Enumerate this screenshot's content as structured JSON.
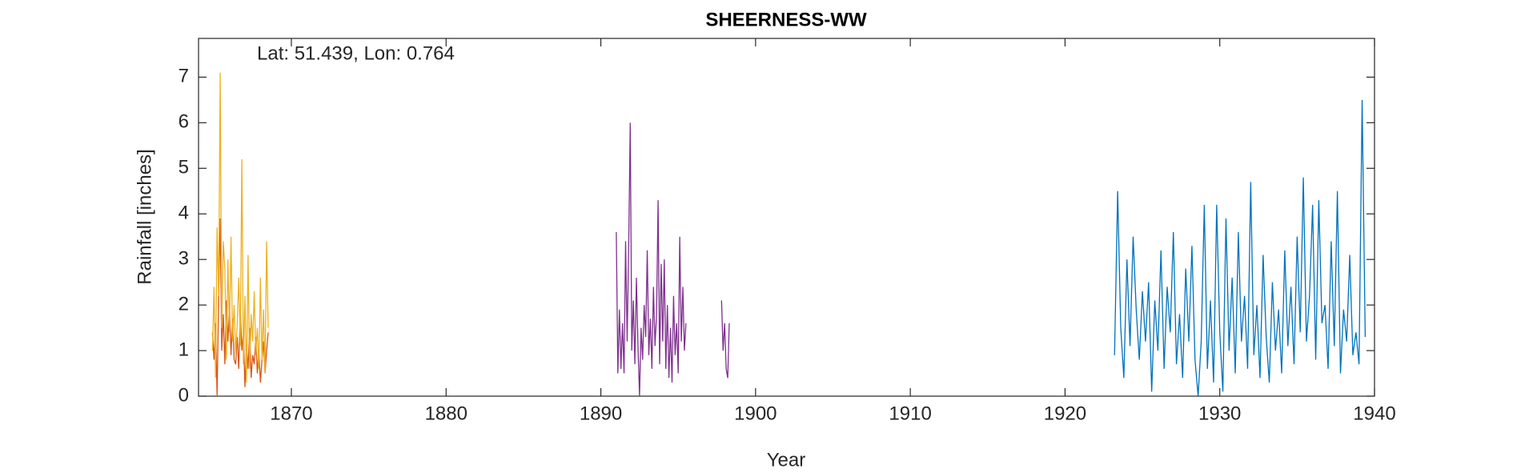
{
  "chart_data": {
    "type": "line",
    "title": "SHEERNESS-WW",
    "annotation": "Lat: 51.439, Lon: 0.764",
    "x_label": "Year",
    "y_label": "Rainfall [inches]",
    "xlim": [
      1864,
      1940
    ],
    "xticks": [
      1870,
      1880,
      1890,
      1900,
      1910,
      1920,
      1930,
      1940
    ],
    "ylim": [
      0,
      7.85
    ],
    "yticks": [
      0,
      1,
      2,
      3,
      4,
      5,
      6,
      7
    ],
    "grid": false,
    "series": [
      {
        "color": "#0072BD",
        "x": [
          1923.2,
          1923.4,
          1923.6,
          1923.8,
          1924.0,
          1924.2,
          1924.4,
          1924.6,
          1924.8,
          1925.0,
          1925.2,
          1925.4,
          1925.6,
          1925.8,
          1926.0,
          1926.2,
          1926.4,
          1926.6,
          1926.8,
          1927.0,
          1927.2,
          1927.4,
          1927.6,
          1927.8,
          1928.0,
          1928.2,
          1928.4,
          1928.6,
          1928.8,
          1929.0,
          1929.2,
          1929.4,
          1929.6,
          1929.8,
          1930.0,
          1930.2,
          1930.4,
          1930.6,
          1930.8,
          1931.0,
          1931.2,
          1931.4,
          1931.6,
          1931.8,
          1932.0,
          1932.2,
          1932.4,
          1932.6,
          1932.8,
          1933.0,
          1933.2,
          1933.4,
          1933.6,
          1933.8,
          1934.0,
          1934.2,
          1934.4,
          1934.6,
          1934.8,
          1935.0,
          1935.2,
          1935.4,
          1935.6,
          1935.8,
          1936.0,
          1936.2,
          1936.4,
          1936.6,
          1936.8,
          1937.0,
          1937.2,
          1937.4,
          1937.6,
          1937.8,
          1938.0,
          1938.2,
          1938.4,
          1938.6,
          1938.8,
          1939.0,
          1939.2,
          1939.4
        ],
        "values": [
          0.9,
          4.5,
          1.5,
          0.4,
          3.0,
          1.1,
          3.5,
          1.9,
          0.8,
          2.3,
          1.2,
          2.5,
          0.1,
          2.1,
          1.0,
          3.2,
          0.6,
          2.4,
          1.4,
          3.6,
          0.7,
          1.8,
          0.4,
          2.8,
          1.2,
          3.3,
          0.8,
          0.0,
          1.2,
          4.2,
          0.6,
          2.1,
          0.3,
          4.2,
          1.4,
          0.1,
          3.9,
          1.0,
          2.6,
          0.5,
          3.6,
          1.2,
          2.2,
          0.6,
          4.7,
          0.9,
          2.0,
          0.4,
          3.1,
          1.3,
          0.3,
          2.5,
          1.0,
          1.9,
          0.5,
          3.2,
          1.1,
          2.4,
          0.7,
          3.5,
          1.4,
          4.8,
          1.2,
          2.2,
          4.2,
          0.8,
          4.3,
          1.6,
          2.0,
          0.6,
          3.4,
          1.1,
          4.5,
          0.5,
          1.9,
          1.2,
          3.1,
          0.9,
          1.4,
          0.7,
          6.5,
          1.3
        ]
      },
      {
        "color": "#D95319",
        "x": [
          1864.9,
          1865.0,
          1865.1,
          1865.2,
          1865.3,
          1865.4,
          1865.5,
          1865.6,
          1865.7,
          1865.8,
          1865.9,
          1866.0,
          1866.1,
          1866.2,
          1866.3,
          1866.4,
          1866.5,
          1866.6,
          1866.7,
          1866.8,
          1866.9,
          1867.0,
          1867.1,
          1867.2,
          1867.3,
          1867.4,
          1867.5,
          1867.6,
          1867.7,
          1867.8,
          1867.9,
          1868.0,
          1868.1,
          1868.2,
          1868.3,
          1868.4,
          1868.5
        ],
        "values": [
          1.4,
          0.8,
          1.6,
          0.0,
          2.2,
          3.9,
          1.0,
          1.8,
          0.7,
          2.1,
          1.2,
          2.0,
          0.9,
          1.7,
          0.8,
          0.7,
          1.3,
          0.6,
          1.9,
          1.0,
          1.4,
          0.2,
          1.1,
          0.6,
          1.5,
          0.4,
          0.9,
          0.7,
          1.3,
          0.5,
          1.0,
          0.3,
          0.8,
          1.2,
          0.5,
          1.0,
          1.4
        ]
      },
      {
        "color": "#EDB120",
        "x": [
          1864.9,
          1865.0,
          1865.1,
          1865.2,
          1865.3,
          1865.4,
          1865.5,
          1865.6,
          1865.7,
          1865.8,
          1865.9,
          1866.0,
          1866.1,
          1866.2,
          1866.3,
          1866.4,
          1866.5,
          1866.6,
          1866.7,
          1866.8,
          1866.9,
          1867.0,
          1867.1,
          1867.2,
          1867.3,
          1867.4,
          1867.5,
          1867.6,
          1867.7,
          1867.8,
          1867.9,
          1868.0,
          1868.1,
          1868.2,
          1868.3,
          1868.4,
          1868.5
        ],
        "values": [
          1.0,
          2.4,
          0.4,
          3.7,
          2.2,
          7.1,
          1.5,
          3.4,
          2.8,
          0.8,
          3.0,
          1.4,
          3.5,
          1.2,
          2.0,
          0.9,
          1.6,
          2.6,
          1.1,
          5.2,
          0.7,
          2.2,
          0.3,
          3.1,
          0.6,
          1.8,
          1.2,
          2.3,
          0.9,
          1.5,
          0.6,
          2.6,
          0.8,
          1.9,
          0.5,
          3.4,
          1.5
        ]
      },
      {
        "color": "#7E2F8E",
        "x": [
          1891.0,
          1891.1,
          1891.2,
          1891.3,
          1891.4,
          1891.5,
          1891.6,
          1891.7,
          1891.8,
          1891.9,
          1892.0,
          1892.1,
          1892.2,
          1892.3,
          1892.4,
          1892.5,
          1892.6,
          1892.7,
          1892.8,
          1892.9,
          1893.0,
          1893.1,
          1893.2,
          1893.3,
          1893.4,
          1893.5,
          1893.6,
          1893.7,
          1893.8,
          1893.9,
          1894.0,
          1894.1,
          1894.2,
          1894.3,
          1894.4,
          1894.5,
          1894.6,
          1894.7,
          1894.8,
          1894.9,
          1895.0,
          1895.1,
          1895.2,
          1895.3,
          1895.4,
          1895.5,
          1896.6,
          1897.8,
          1897.9,
          1898.0,
          1898.1,
          1898.2,
          1898.3
        ],
        "values": [
          3.6,
          0.5,
          1.9,
          0.6,
          1.6,
          0.5,
          3.4,
          1.2,
          3.3,
          6.0,
          1.0,
          2.1,
          0.7,
          2.6,
          1.1,
          0.0,
          1.5,
          0.8,
          2.0,
          1.3,
          3.2,
          0.9,
          1.7,
          0.6,
          2.4,
          1.1,
          1.8,
          4.3,
          0.7,
          2.9,
          1.2,
          3.0,
          0.6,
          2.0,
          0.4,
          1.5,
          0.3,
          2.2,
          0.9,
          1.6,
          0.5,
          3.5,
          1.2,
          2.4,
          1.0,
          1.6,
          null,
          2.1,
          1.0,
          1.6,
          0.6,
          0.4,
          1.6
        ]
      }
    ]
  }
}
